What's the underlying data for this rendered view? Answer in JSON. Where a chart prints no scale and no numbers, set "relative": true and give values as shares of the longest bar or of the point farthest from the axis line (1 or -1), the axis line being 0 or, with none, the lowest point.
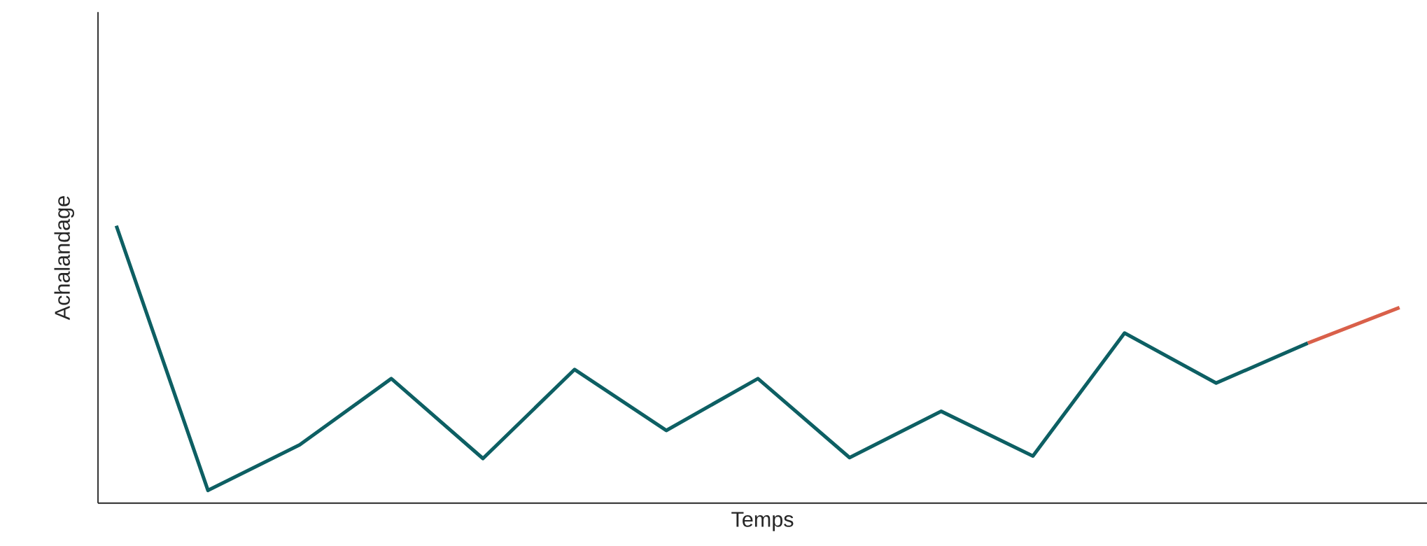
{
  "chart_data": {
    "type": "line",
    "xlabel": "Temps",
    "ylabel": "Achalandage",
    "relative": true,
    "categories": [
      null,
      null,
      null,
      null,
      null,
      null,
      null,
      null,
      null,
      null,
      null,
      null,
      null,
      null,
      null
    ],
    "series": [
      {
        "color": "#0d5f63",
        "values": [
          1,
          0.046,
          0.21,
          0.449,
          0.161,
          0.482,
          0.262,
          0.449,
          0.164,
          0.331,
          0.17,
          0.613,
          0.433,
          0.577,
          null
        ]
      },
      {
        "color": "#d9604a",
        "values": [
          null,
          null,
          null,
          null,
          null,
          null,
          null,
          null,
          null,
          null,
          null,
          null,
          null,
          0.577,
          0.705
        ]
      }
    ]
  }
}
